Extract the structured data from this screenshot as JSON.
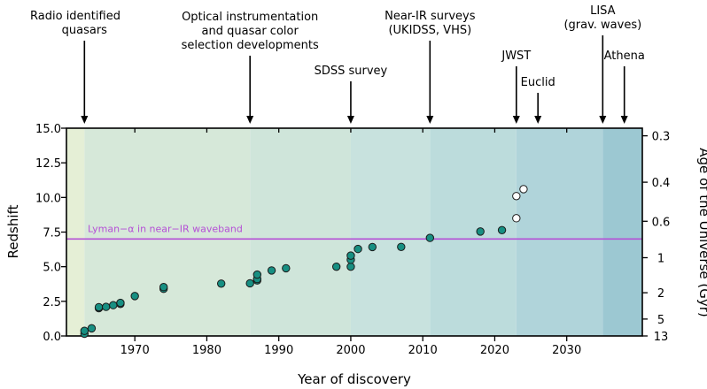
{
  "chart_data": {
    "type": "scatter",
    "xlabel": "Year of discovery",
    "ylabel": "Redshift",
    "ylabel_right": "Age of the Universe (Gyr)",
    "xlim": [
      1960.5,
      2040.5
    ],
    "ylim": [
      0,
      15
    ],
    "x_ticks": [
      1970,
      1980,
      1990,
      2000,
      2010,
      2020,
      2030
    ],
    "x_tick_labels": [
      "1970",
      "1980",
      "1990",
      "2000",
      "2010",
      "2020",
      "2030"
    ],
    "y_ticks": [
      0,
      2.5,
      5,
      7.5,
      10,
      12.5,
      15
    ],
    "y_tick_labels": [
      "0.0",
      "2.5",
      "5.0",
      "7.5",
      "10.0",
      "12.5",
      "15.0"
    ],
    "right_ticks": [
      {
        "z": 14.45,
        "label": "0.3"
      },
      {
        "z": 11.1,
        "label": "0.4"
      },
      {
        "z": 8.28,
        "label": "0.6"
      },
      {
        "z": 5.65,
        "label": "1"
      },
      {
        "z": 3.12,
        "label": "2"
      },
      {
        "z": 1.22,
        "label": "5"
      },
      {
        "z": 0.0,
        "label": "13"
      }
    ],
    "bands": [
      {
        "from": 1960.5,
        "to": 1963,
        "color": "#e5efd6"
      },
      {
        "from": 1963,
        "to": 1986,
        "color": "#d6e8d9"
      },
      {
        "from": 1986,
        "to": 2000,
        "color": "#cfe5da"
      },
      {
        "from": 2000,
        "to": 2011,
        "color": "#c8e2de"
      },
      {
        "from": 2011,
        "to": 2023,
        "color": "#bcdcdc"
      },
      {
        "from": 2023,
        "to": 2035,
        "color": "#b0d4da"
      },
      {
        "from": 2035,
        "to": 2040.5,
        "color": "#9cc8d2"
      }
    ],
    "hline": {
      "y": 7.0,
      "label": "Lyman−α in near−IR waveband",
      "color": "#b54fd6"
    },
    "series": [
      {
        "marker_color": "#178f82",
        "points": [
          [
            1963,
            0.16
          ],
          [
            1963,
            0.37
          ],
          [
            1964,
            0.55
          ],
          [
            1965,
            2.01
          ],
          [
            1965,
            2.08
          ],
          [
            1966,
            2.1
          ],
          [
            1967,
            2.22
          ],
          [
            1968,
            2.31
          ],
          [
            1968,
            2.39
          ],
          [
            1970,
            2.88
          ],
          [
            1974,
            3.4
          ],
          [
            1974,
            3.53
          ],
          [
            1982,
            3.78
          ],
          [
            1986,
            3.8
          ],
          [
            1987,
            4.01
          ],
          [
            1987,
            4.11
          ],
          [
            1987,
            4.43
          ],
          [
            1989,
            4.73
          ],
          [
            1991,
            4.89
          ],
          [
            1998,
            5.0
          ],
          [
            2000,
            5.0
          ],
          [
            2000,
            5.5
          ],
          [
            2000,
            5.8
          ],
          [
            2001,
            6.28
          ],
          [
            2003,
            6.42
          ],
          [
            2007,
            6.43
          ],
          [
            2011,
            7.08
          ],
          [
            2018,
            7.54
          ],
          [
            2021,
            7.64
          ]
        ]
      },
      {
        "marker_color": "#ffffff",
        "points": [
          [
            2023,
            8.5
          ],
          [
            2023,
            10.1
          ],
          [
            2024,
            10.6
          ]
        ]
      }
    ],
    "annotations": [
      {
        "lines": [
          "Radio identified",
          "quasars"
        ],
        "x": 1963,
        "arrow_from": 46,
        "tick": true
      },
      {
        "lines": [
          "Optical instrumentation",
          "and quasar color",
          "selection developments"
        ],
        "x": 1986,
        "arrow_from": 63,
        "tick": true
      },
      {
        "lines": [
          "SDSS survey"
        ],
        "x": 2000,
        "arrow_from": 92,
        "tick": true
      },
      {
        "lines": [
          "Near-IR surveys",
          "(UKIDSS, VHS)"
        ],
        "x": 2011,
        "arrow_from": 46,
        "tick": true
      },
      {
        "lines": [
          "JWST"
        ],
        "x": 2023,
        "arrow_from": 75,
        "tick": true
      },
      {
        "lines": [
          "Euclid"
        ],
        "x": 2026,
        "arrow_from": 105,
        "tick": true
      },
      {
        "lines": [
          "LISA",
          "(grav. waves)"
        ],
        "x": 2035,
        "arrow_from": 40,
        "tick": true
      },
      {
        "lines": [
          "Athena"
        ],
        "x": 2038,
        "arrow_from": 75,
        "tick": true
      }
    ]
  }
}
